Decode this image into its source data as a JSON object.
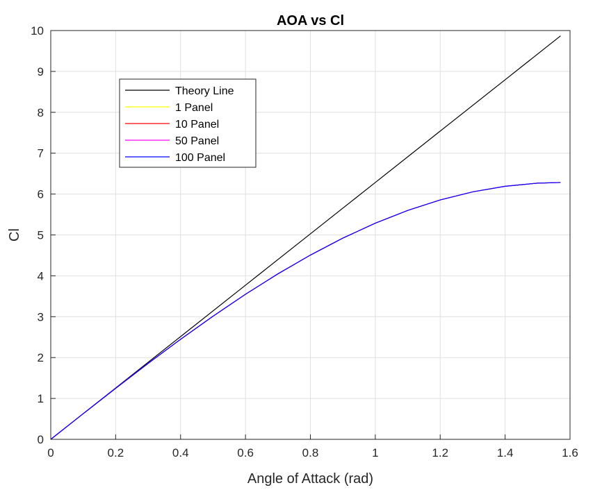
{
  "chart_data": {
    "type": "line",
    "title": "AOA vs Cl",
    "xlabel": "Angle of Attack (rad)",
    "ylabel": "Cl",
    "xlim": [
      0,
      1.6
    ],
    "ylim": [
      0,
      10
    ],
    "xticks": [
      0,
      0.2,
      0.4,
      0.6,
      0.8,
      1,
      1.2,
      1.4,
      1.6
    ],
    "xtick_labels": [
      "0",
      "0.2",
      "0.4",
      "0.6",
      "0.8",
      "1",
      "1.2",
      "1.4",
      "1.6"
    ],
    "yticks": [
      0,
      1,
      2,
      3,
      4,
      5,
      6,
      7,
      8,
      9,
      10
    ],
    "ytick_labels": [
      "0",
      "1",
      "2",
      "3",
      "4",
      "5",
      "6",
      "7",
      "8",
      "9",
      "10"
    ],
    "grid": true,
    "legend_position": "upper-left",
    "series": [
      {
        "name": "Theory Line",
        "color": "#000000",
        "x": [
          0,
          0.2,
          0.4,
          0.6,
          0.8,
          1.0,
          1.2,
          1.4,
          1.5708
        ],
        "y": [
          0,
          1.257,
          2.513,
          3.77,
          5.027,
          6.283,
          7.54,
          8.796,
          9.87
        ]
      },
      {
        "name": "1 Panel",
        "color": "#ffff00",
        "x": [
          0,
          0.1,
          0.2,
          0.3,
          0.4,
          0.5,
          0.6,
          0.7,
          0.8,
          0.9,
          1.0,
          1.1,
          1.2,
          1.3,
          1.4,
          1.5,
          1.5708
        ],
        "y": [
          0,
          0.627,
          1.248,
          1.857,
          2.447,
          3.012,
          3.548,
          4.048,
          4.507,
          4.922,
          5.287,
          5.6,
          5.856,
          6.054,
          6.191,
          6.267,
          6.283
        ]
      },
      {
        "name": "10 Panel",
        "color": "#ff0000",
        "x": [
          0,
          0.1,
          0.2,
          0.3,
          0.4,
          0.5,
          0.6,
          0.7,
          0.8,
          0.9,
          1.0,
          1.1,
          1.2,
          1.3,
          1.4,
          1.5,
          1.5708
        ],
        "y": [
          0,
          0.627,
          1.248,
          1.857,
          2.447,
          3.012,
          3.548,
          4.048,
          4.507,
          4.922,
          5.287,
          5.6,
          5.856,
          6.054,
          6.191,
          6.267,
          6.283
        ]
      },
      {
        "name": "50 Panel",
        "color": "#ff00ff",
        "x": [
          0,
          0.1,
          0.2,
          0.3,
          0.4,
          0.5,
          0.6,
          0.7,
          0.8,
          0.9,
          1.0,
          1.1,
          1.2,
          1.3,
          1.4,
          1.5,
          1.5708
        ],
        "y": [
          0,
          0.627,
          1.248,
          1.857,
          2.447,
          3.012,
          3.548,
          4.048,
          4.507,
          4.922,
          5.287,
          5.6,
          5.856,
          6.054,
          6.191,
          6.267,
          6.283
        ]
      },
      {
        "name": "100 Panel",
        "color": "#0000ff",
        "x": [
          0,
          0.1,
          0.2,
          0.3,
          0.4,
          0.5,
          0.6,
          0.7,
          0.8,
          0.9,
          1.0,
          1.1,
          1.2,
          1.3,
          1.4,
          1.5,
          1.5708
        ],
        "y": [
          0,
          0.627,
          1.248,
          1.857,
          2.447,
          3.012,
          3.548,
          4.048,
          4.507,
          4.922,
          5.287,
          5.6,
          5.856,
          6.054,
          6.191,
          6.267,
          6.283
        ]
      }
    ]
  }
}
